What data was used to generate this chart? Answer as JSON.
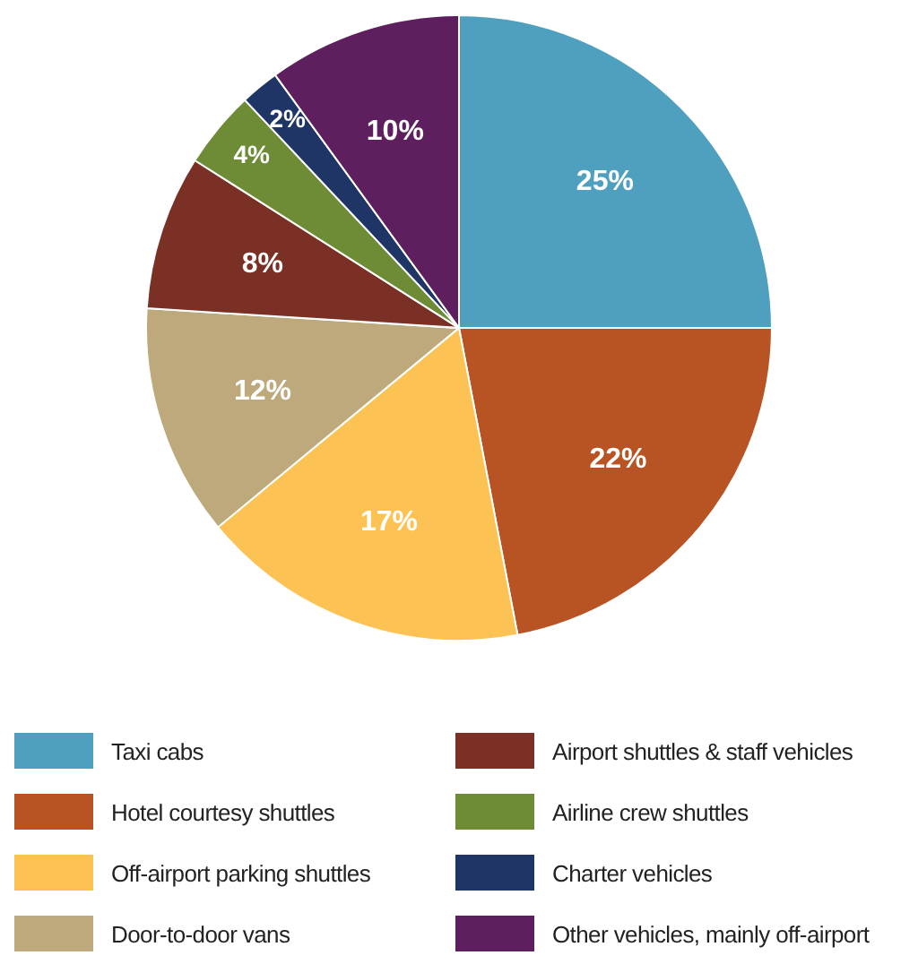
{
  "chart_data": {
    "type": "pie",
    "categories": [
      "Taxi cabs",
      "Hotel courtesy shuttles",
      "Off-airport parking shuttles",
      "Door-to-door vans",
      "Airport shuttles & staff vehicles",
      "Airline crew shuttles",
      "Charter vehicles",
      "Other vehicles, mainly off-airport"
    ],
    "values": [
      25,
      22,
      17,
      12,
      8,
      4,
      2,
      10
    ],
    "colors": [
      "#4f9fbf",
      "#b85424",
      "#fdc254",
      "#bda97c",
      "#7a3024",
      "#6e8c35",
      "#1f3566",
      "#5e1f5f"
    ],
    "value_labels": [
      "25%",
      "22%",
      "17%",
      "12%",
      "8%",
      "4%",
      "2%",
      "10%"
    ],
    "legend": "bottom"
  }
}
